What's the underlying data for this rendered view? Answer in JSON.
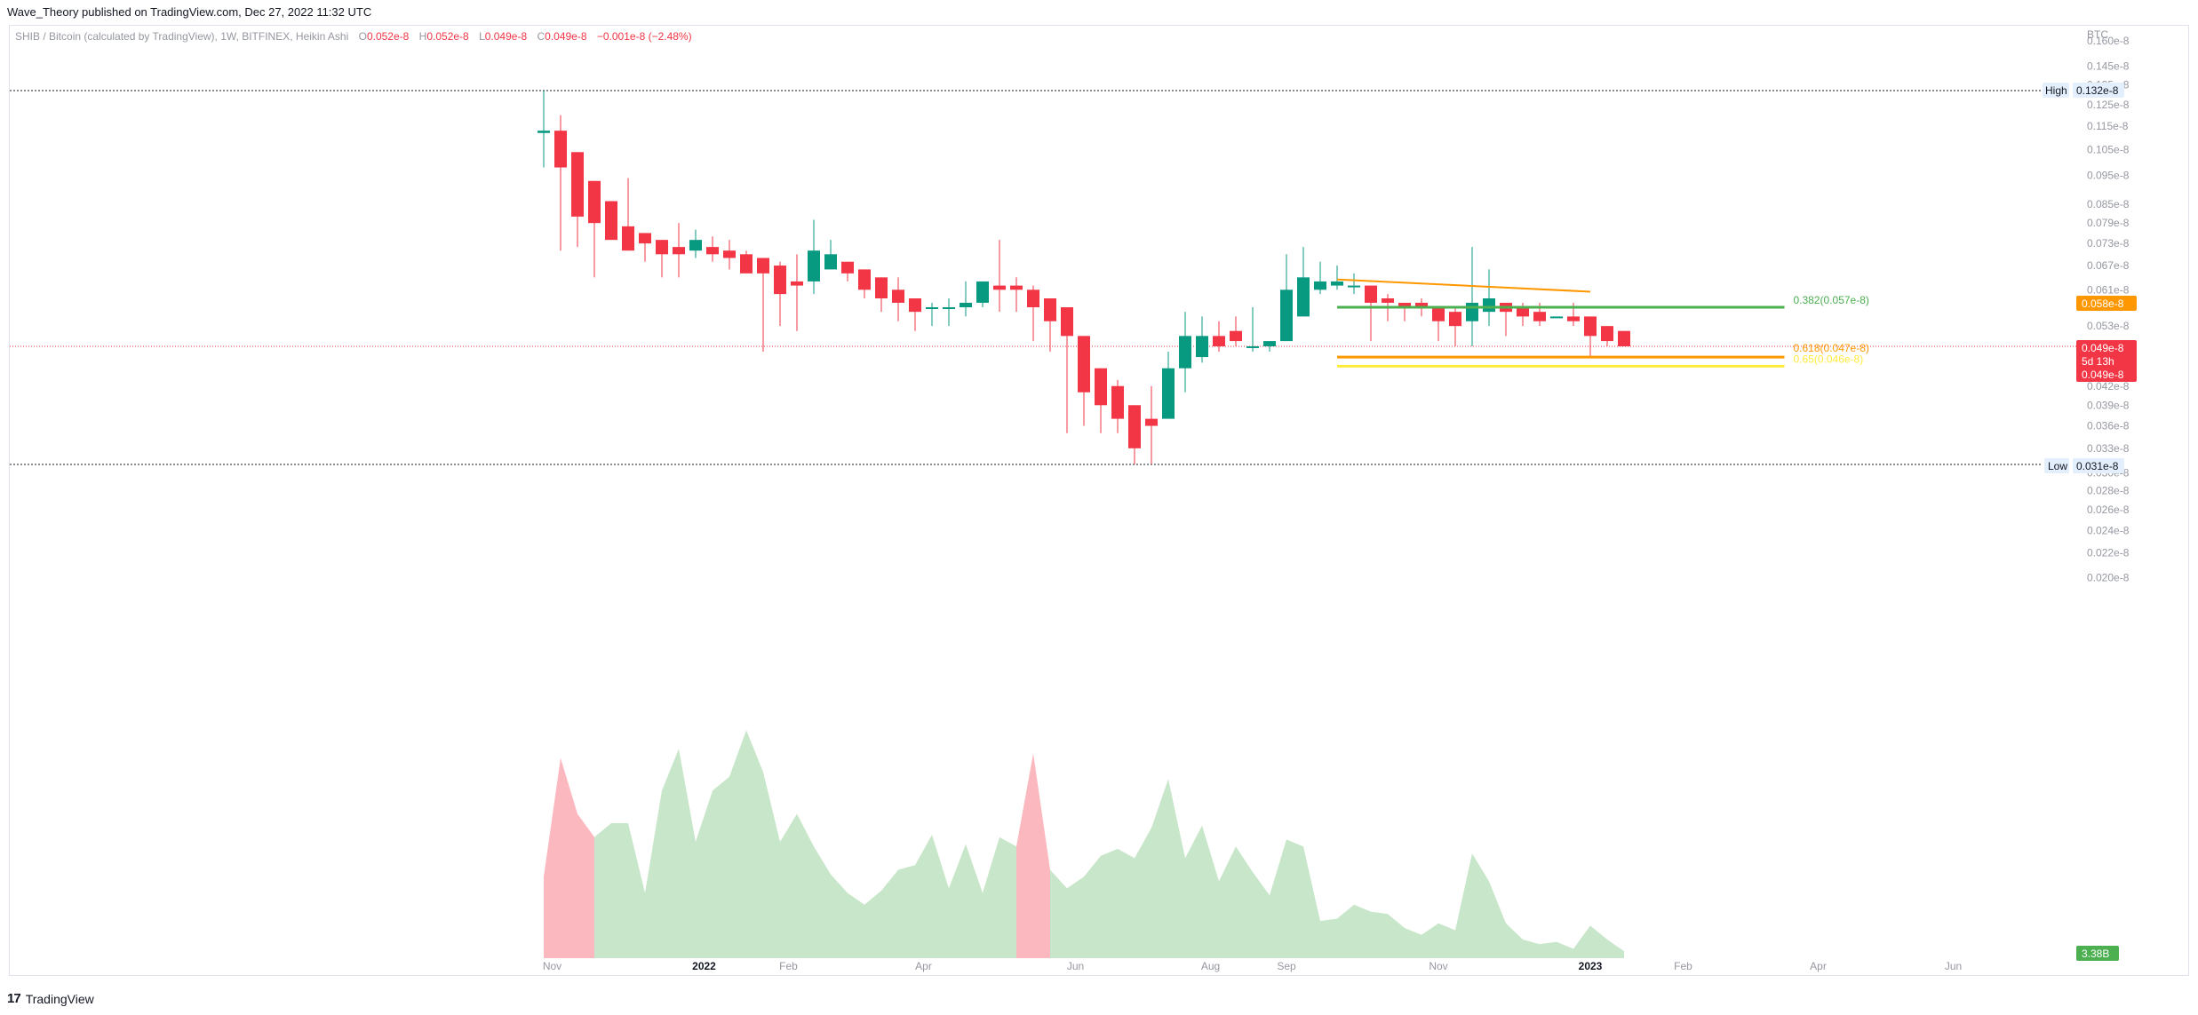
{
  "header": {
    "published": "Wave_Theory published on TradingView.com, Dec 27, 2022 11:32 UTC"
  },
  "legend": {
    "symbol": "SHIB / Bitcoin (calculated by TradingView), 1W, BITFINEX, Heikin Ashi",
    "o_label": "O",
    "o_value": "0.052e-8",
    "h_label": "H",
    "h_value": "0.052e-8",
    "l_label": "L",
    "l_value": "0.049e-8",
    "c_label": "C",
    "c_value": "0.049e-8",
    "change": "−0.001e-8 (−2.48%)"
  },
  "footer": {
    "brand": "TradingView"
  },
  "colors": {
    "up": "#089981",
    "down": "#f23645",
    "vol_up": "#c8e6c9",
    "vol_down": "#fbb8be",
    "fib_382": "#4caf50",
    "fib_618": "#ff9800",
    "fib_65": "#ffeb3b",
    "trend": "#ff9800"
  },
  "chart_data": {
    "type": "candlestick",
    "scale": "log",
    "currency": "BTC",
    "y_ticks": [
      "0.160e-8",
      "0.145e-8",
      "0.135e-8",
      "0.125e-8",
      "0.115e-8",
      "0.105e-8",
      "0.095e-8",
      "0.085e-8",
      "0.079e-8",
      "0.073e-8",
      "0.067e-8",
      "0.061e-8",
      "0.057e-8",
      "0.053e-8",
      "0.045e-8",
      "0.042e-8",
      "0.039e-8",
      "0.036e-8",
      "0.033e-8",
      "0.030e-8",
      "0.028e-8",
      "0.026e-8",
      "0.024e-8",
      "0.022e-8",
      "0.020e-8"
    ],
    "y_tick_values": [
      0.16,
      0.145,
      0.135,
      0.125,
      0.115,
      0.105,
      0.095,
      0.085,
      0.079,
      0.073,
      0.067,
      0.061,
      0.057,
      0.053,
      0.045,
      0.042,
      0.039,
      0.036,
      0.033,
      0.03,
      0.028,
      0.026,
      0.024,
      0.022,
      0.02
    ],
    "x_ticks": [
      "Nov",
      "2022",
      "Feb",
      "Apr",
      "Jun",
      "Aug",
      "Sep",
      "Nov",
      "2023",
      "Feb",
      "Apr",
      "Jun"
    ],
    "x_tick_weeks": [
      0.5,
      9.5,
      14.5,
      22.5,
      31.5,
      39.5,
      44,
      53,
      62,
      67.5,
      75.5,
      83.5
    ],
    "candles": [
      {
        "o": 0.112,
        "h": 0.132,
        "l": 0.098,
        "c": 0.113
      },
      {
        "o": 0.113,
        "h": 0.12,
        "l": 0.071,
        "c": 0.098
      },
      {
        "o": 0.104,
        "h": 0.104,
        "l": 0.072,
        "c": 0.081
      },
      {
        "o": 0.093,
        "h": 0.093,
        "l": 0.064,
        "c": 0.079
      },
      {
        "o": 0.086,
        "h": 0.086,
        "l": 0.075,
        "c": 0.074
      },
      {
        "o": 0.078,
        "h": 0.094,
        "l": 0.071,
        "c": 0.071
      },
      {
        "o": 0.076,
        "h": 0.076,
        "l": 0.068,
        "c": 0.073
      },
      {
        "o": 0.074,
        "h": 0.074,
        "l": 0.064,
        "c": 0.07
      },
      {
        "o": 0.072,
        "h": 0.079,
        "l": 0.064,
        "c": 0.07
      },
      {
        "o": 0.071,
        "h": 0.077,
        "l": 0.069,
        "c": 0.074
      },
      {
        "o": 0.072,
        "h": 0.075,
        "l": 0.068,
        "c": 0.07
      },
      {
        "o": 0.071,
        "h": 0.074,
        "l": 0.066,
        "c": 0.069
      },
      {
        "o": 0.07,
        "h": 0.071,
        "l": 0.066,
        "c": 0.065
      },
      {
        "o": 0.069,
        "h": 0.069,
        "l": 0.048,
        "c": 0.065
      },
      {
        "o": 0.067,
        "h": 0.068,
        "l": 0.053,
        "c": 0.06
      },
      {
        "o": 0.063,
        "h": 0.07,
        "l": 0.052,
        "c": 0.062
      },
      {
        "o": 0.063,
        "h": 0.08,
        "l": 0.06,
        "c": 0.071
      },
      {
        "o": 0.066,
        "h": 0.074,
        "l": 0.066,
        "c": 0.07
      },
      {
        "o": 0.068,
        "h": 0.068,
        "l": 0.063,
        "c": 0.065
      },
      {
        "o": 0.066,
        "h": 0.066,
        "l": 0.059,
        "c": 0.061
      },
      {
        "o": 0.064,
        "h": 0.064,
        "l": 0.056,
        "c": 0.059
      },
      {
        "o": 0.061,
        "h": 0.064,
        "l": 0.054,
        "c": 0.058
      },
      {
        "o": 0.059,
        "h": 0.059,
        "l": 0.052,
        "c": 0.056
      },
      {
        "o": 0.057,
        "h": 0.058,
        "l": 0.053,
        "c": 0.057
      },
      {
        "o": 0.057,
        "h": 0.059,
        "l": 0.053,
        "c": 0.057
      },
      {
        "o": 0.057,
        "h": 0.063,
        "l": 0.055,
        "c": 0.058
      },
      {
        "o": 0.058,
        "h": 0.062,
        "l": 0.057,
        "c": 0.063
      },
      {
        "o": 0.062,
        "h": 0.074,
        "l": 0.056,
        "c": 0.061
      },
      {
        "o": 0.062,
        "h": 0.064,
        "l": 0.056,
        "c": 0.061
      },
      {
        "o": 0.061,
        "h": 0.062,
        "l": 0.05,
        "c": 0.057
      },
      {
        "o": 0.059,
        "h": 0.059,
        "l": 0.048,
        "c": 0.054
      },
      {
        "o": 0.057,
        "h": 0.057,
        "l": 0.035,
        "c": 0.051
      },
      {
        "o": 0.051,
        "h": 0.051,
        "l": 0.036,
        "c": 0.041
      },
      {
        "o": 0.045,
        "h": 0.045,
        "l": 0.035,
        "c": 0.039
      },
      {
        "o": 0.042,
        "h": 0.043,
        "l": 0.035,
        "c": 0.037
      },
      {
        "o": 0.039,
        "h": 0.039,
        "l": 0.031,
        "c": 0.033
      },
      {
        "o": 0.037,
        "h": 0.042,
        "l": 0.031,
        "c": 0.036
      },
      {
        "o": 0.037,
        "h": 0.048,
        "l": 0.037,
        "c": 0.045
      },
      {
        "o": 0.045,
        "h": 0.056,
        "l": 0.041,
        "c": 0.051
      },
      {
        "o": 0.047,
        "h": 0.055,
        "l": 0.046,
        "c": 0.051
      },
      {
        "o": 0.051,
        "h": 0.054,
        "l": 0.048,
        "c": 0.049
      },
      {
        "o": 0.052,
        "h": 0.055,
        "l": 0.049,
        "c": 0.05
      },
      {
        "o": 0.049,
        "h": 0.057,
        "l": 0.048,
        "c": 0.049
      },
      {
        "o": 0.049,
        "h": 0.049,
        "l": 0.048,
        "c": 0.05
      },
      {
        "o": 0.05,
        "h": 0.07,
        "l": 0.05,
        "c": 0.061
      },
      {
        "o": 0.055,
        "h": 0.072,
        "l": 0.055,
        "c": 0.064
      },
      {
        "o": 0.061,
        "h": 0.068,
        "l": 0.06,
        "c": 0.063
      },
      {
        "o": 0.062,
        "h": 0.067,
        "l": 0.061,
        "c": 0.063
      },
      {
        "o": 0.062,
        "h": 0.065,
        "l": 0.06,
        "c": 0.062
      },
      {
        "o": 0.062,
        "h": 0.062,
        "l": 0.05,
        "c": 0.058
      },
      {
        "o": 0.059,
        "h": 0.06,
        "l": 0.054,
        "c": 0.058
      },
      {
        "o": 0.058,
        "h": 0.058,
        "l": 0.054,
        "c": 0.057
      },
      {
        "o": 0.058,
        "h": 0.059,
        "l": 0.055,
        "c": 0.057
      },
      {
        "o": 0.057,
        "h": 0.057,
        "l": 0.05,
        "c": 0.054
      },
      {
        "o": 0.056,
        "h": 0.057,
        "l": 0.049,
        "c": 0.053
      },
      {
        "o": 0.054,
        "h": 0.072,
        "l": 0.049,
        "c": 0.058
      },
      {
        "o": 0.056,
        "h": 0.066,
        "l": 0.053,
        "c": 0.059
      },
      {
        "o": 0.058,
        "h": 0.058,
        "l": 0.051,
        "c": 0.056
      },
      {
        "o": 0.057,
        "h": 0.058,
        "l": 0.053,
        "c": 0.055
      },
      {
        "o": 0.056,
        "h": 0.058,
        "l": 0.053,
        "c": 0.054
      },
      {
        "o": 0.055,
        "h": 0.055,
        "l": 0.055,
        "c": 0.055
      },
      {
        "o": 0.055,
        "h": 0.058,
        "l": 0.053,
        "c": 0.054
      },
      {
        "o": 0.055,
        "h": 0.055,
        "l": 0.047,
        "c": 0.051
      },
      {
        "o": 0.053,
        "h": 0.053,
        "l": 0.049,
        "c": 0.05
      },
      {
        "o": 0.052,
        "h": 0.052,
        "l": 0.049,
        "c": 0.049
      }
    ],
    "volume": [
      0.35,
      0.86,
      0.62,
      0.52,
      0.58,
      0.58,
      0.28,
      0.72,
      0.9,
      0.5,
      0.72,
      0.78,
      0.98,
      0.8,
      0.5,
      0.62,
      0.48,
      0.36,
      0.28,
      0.23,
      0.29,
      0.38,
      0.4,
      0.53,
      0.3,
      0.49,
      0.28,
      0.52,
      0.48,
      0.88,
      0.38,
      0.3,
      0.35,
      0.44,
      0.47,
      0.43,
      0.56,
      0.77,
      0.43,
      0.57,
      0.33,
      0.48,
      0.37,
      0.27,
      0.51,
      0.48,
      0.16,
      0.17,
      0.23,
      0.2,
      0.19,
      0.13,
      0.1,
      0.15,
      0.12,
      0.45,
      0.33,
      0.15,
      0.08,
      0.06,
      0.07,
      0.04,
      0.14,
      0.08,
      0.03
    ],
    "volume_down_weeks": [
      0,
      1,
      2,
      3,
      29,
      30
    ],
    "markers": {
      "high_label": "High",
      "high_value": "0.132e-8",
      "low_label": "Low",
      "low_value": "0.031e-8"
    },
    "price_labels": {
      "currency": "BTC",
      "fib_tag": "0.058e-8",
      "last": "0.049e-8",
      "countdown": "5d 13h",
      "last2": "0.049e-8",
      "volume_tag": "3.38B"
    },
    "fib_levels": [
      {
        "label": "0.382(0.057e-8)",
        "value": 0.057
      },
      {
        "label": "0.618(0.047e-8)",
        "value": 0.047
      },
      {
        "label": "0.65(0.046e-8)",
        "value": 0.046
      }
    ],
    "trendline": {
      "from_week": 47,
      "from_value": 0.0605,
      "to_week": 62,
      "to_value": 0.0585
    }
  }
}
